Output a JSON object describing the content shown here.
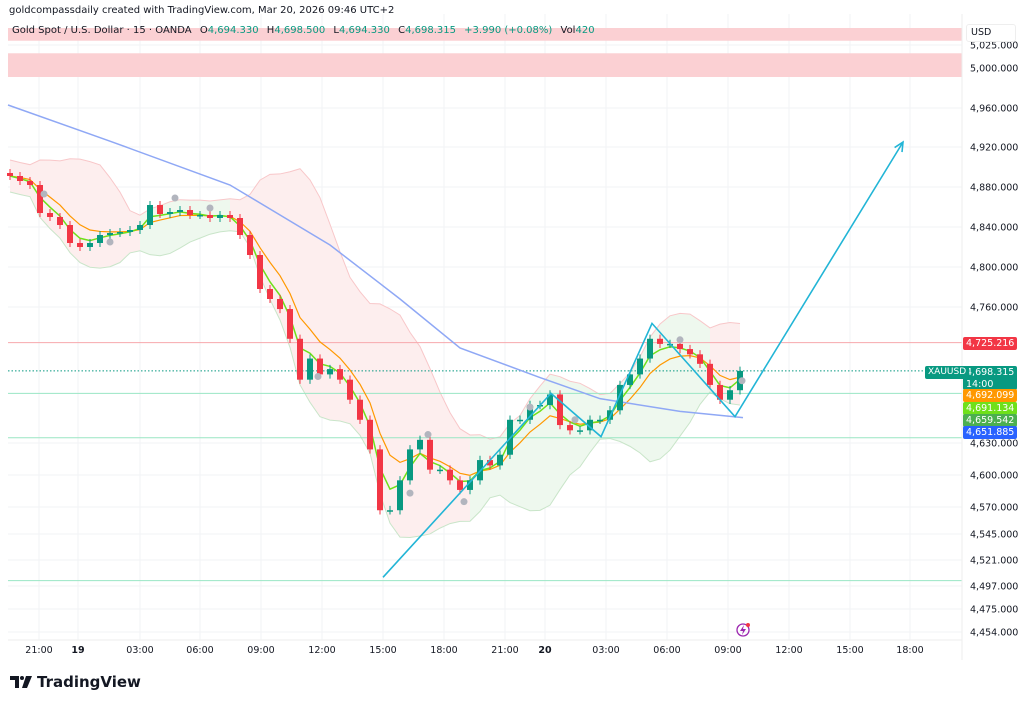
{
  "attribution": "goldcompassdaily created with TradingView.com, Mar 20, 2026 09:46 UTC+2",
  "legend": {
    "symbol": "Gold Spot / U.S. Dollar · 15 · OANDA",
    "o_label": "O",
    "o": "4,694.330",
    "h_label": "H",
    "h": "4,698.500",
    "l_label": "L",
    "l": "4,694.330",
    "c_label": "C",
    "c": "4,698.315",
    "change": "+3.990 (+0.08%)",
    "vol_label": "Vol",
    "vol": "420"
  },
  "currency": "USD",
  "price_labels": [
    {
      "text": "4,725.216",
      "color": "#f23645"
    },
    {
      "text": "4,698.315",
      "sub": "14:00",
      "tag": "XAUUSD",
      "color": "#089981"
    },
    {
      "text": "4,692.099",
      "color": "#ff9800"
    },
    {
      "text": "4,691.134",
      "color": "#6fe01a"
    },
    {
      "text": "4,659.542",
      "color": "#4caf50"
    },
    {
      "text": "4,651.885",
      "color": "#2962ff"
    }
  ],
  "brand": "TradingView",
  "chart_data": {
    "type": "candlestick",
    "symbol": "XAUUSD",
    "interval": "15",
    "y_ticks": [
      "5,025.000",
      "5,000.000",
      "4,960.000",
      "4,920.000",
      "4,880.000",
      "4,840.000",
      "4,800.000",
      "4,760.000",
      "4,630.000",
      "4,600.000",
      "4,570.000",
      "4,545.000",
      "4,521.000",
      "4,497.000",
      "4,475.000",
      "4,454.000"
    ],
    "x_ticks": [
      "21:00",
      "19",
      "03:00",
      "06:00",
      "09:00",
      "12:00",
      "15:00",
      "18:00",
      "21:00",
      "20",
      "03:00",
      "06:00",
      "09:00",
      "12:00",
      "15:00",
      "18:00"
    ],
    "closes": [
      4891,
      4886,
      4882,
      4854,
      4850,
      4842,
      4824,
      4820,
      4824,
      4832,
      4834,
      4835,
      4837,
      4842,
      4862,
      4853,
      4855,
      4857,
      4852,
      4852,
      4849,
      4852,
      4849,
      4832,
      4812,
      4778,
      4768,
      4758,
      4729,
      4690,
      4710,
      4695,
      4700,
      4690,
      4671,
      4652,
      4624,
      4567,
      4567,
      4595,
      4624,
      4633,
      4605,
      4605,
      4595,
      4586,
      4595,
      4614,
      4609,
      4619,
      4652,
      4652,
      4666,
      4666,
      4676,
      4647,
      4642,
      4642,
      4652,
      4652,
      4661,
      4685,
      4695,
      4710,
      4729,
      4724,
      4724,
      4719,
      4714,
      4705,
      4685,
      4671,
      4680,
      4698.315
    ],
    "slow_ma": [
      4963,
      4926,
      4882,
      4822,
      4768,
      4720,
      4692,
      4672,
      4660,
      4654
    ],
    "levels": [
      {
        "price": 4725.216,
        "color": "#f7a8ad"
      },
      {
        "price": 4698.315,
        "color": "#089981",
        "style": "dotted"
      },
      {
        "price": 4677,
        "color": "#9ae6c4"
      },
      {
        "price": 4635,
        "color": "#9ae6c4"
      },
      {
        "price": 4502,
        "color": "#9ae6c4"
      }
    ],
    "zones": [
      {
        "from": 5030,
        "to": 5045,
        "color": "#fbd0d3"
      },
      {
        "from": 4991,
        "to": 5016,
        "color": "#fbd0d3"
      }
    ],
    "projection_path": [
      {
        "i": 37.3,
        "price": 4505
      },
      {
        "i": 54.1,
        "price": 4677
      },
      {
        "i": 59.1,
        "price": 4636
      },
      {
        "i": 64.2,
        "price": 4744
      },
      {
        "i": 72.5,
        "price": 4655
      },
      {
        "i": 89.3,
        "price": 4925
      }
    ],
    "pivot_markers": [
      {
        "i": 3.4,
        "price": 4873
      },
      {
        "i": 10,
        "price": 4825
      },
      {
        "i": 16.5,
        "price": 4869
      },
      {
        "i": 20,
        "price": 4859
      },
      {
        "i": 30.8,
        "price": 4693
      },
      {
        "i": 40,
        "price": 4583
      },
      {
        "i": 41.8,
        "price": 4638
      },
      {
        "i": 45.4,
        "price": 4575
      },
      {
        "i": 52,
        "price": 4664
      },
      {
        "i": 56.5,
        "price": 4652
      },
      {
        "i": 67,
        "price": 4728
      },
      {
        "i": 73.2,
        "price": 4689
      }
    ],
    "colors": {
      "up": "#089981",
      "down": "#f23645",
      "fast_ema": "#6fe01a",
      "slow_ema": "#ff9800",
      "long_ma": "#8fa8f5",
      "projection": "#22b5d6"
    }
  }
}
